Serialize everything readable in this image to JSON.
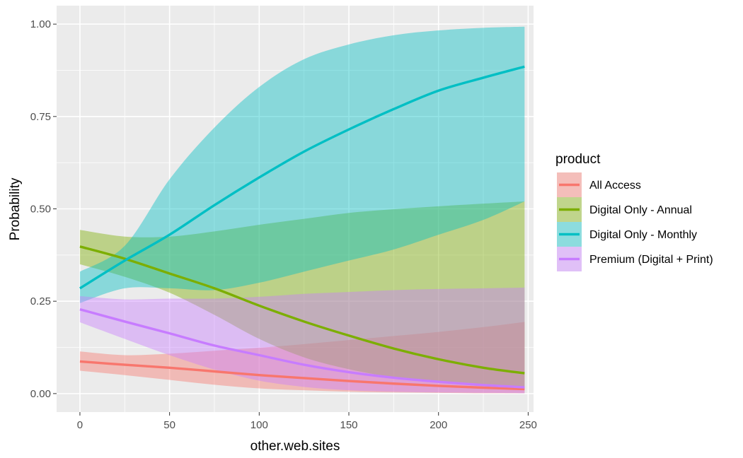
{
  "chart_data": {
    "type": "line",
    "xlabel": "other.web.sites",
    "ylabel": "Probability",
    "xlim": [
      -13,
      253
    ],
    "ylim": [
      -0.05,
      1.05
    ],
    "x_ticks": [
      0,
      50,
      100,
      150,
      200,
      250
    ],
    "x_tick_labels": [
      "0",
      "50",
      "100",
      "150",
      "200",
      "250"
    ],
    "y_ticks": [
      0,
      0.25,
      0.5,
      0.75,
      1.0
    ],
    "y_tick_labels": [
      "0.00",
      "0.25",
      "0.50",
      "0.75",
      "1.00"
    ],
    "grid": true,
    "legend": {
      "title": "product",
      "position": "right"
    },
    "x": [
      0,
      25,
      50,
      75,
      100,
      125,
      150,
      175,
      200,
      225,
      248
    ],
    "series": [
      {
        "name": "All Access",
        "color": "#F8766D",
        "values": [
          0.087,
          0.078,
          0.07,
          0.06,
          0.05,
          0.042,
          0.034,
          0.027,
          0.021,
          0.016,
          0.012
        ],
        "lower": [
          0.062,
          0.05,
          0.037,
          0.024,
          0.014,
          0.009,
          0.005,
          0.003,
          0.002,
          0.001,
          0.001
        ],
        "upper": [
          0.114,
          0.104,
          0.108,
          0.116,
          0.124,
          0.134,
          0.145,
          0.156,
          0.167,
          0.18,
          0.194
        ]
      },
      {
        "name": "Digital Only - Annual",
        "color": "#7CAE00",
        "values": [
          0.398,
          0.365,
          0.325,
          0.285,
          0.238,
          0.195,
          0.157,
          0.122,
          0.093,
          0.07,
          0.055
        ],
        "lower": [
          0.35,
          0.316,
          0.273,
          0.213,
          0.148,
          0.098,
          0.066,
          0.044,
          0.03,
          0.02,
          0.015
        ],
        "upper": [
          0.443,
          0.425,
          0.425,
          0.439,
          0.457,
          0.473,
          0.489,
          0.499,
          0.507,
          0.514,
          0.52
        ]
      },
      {
        "name": "Digital Only - Monthly",
        "color": "#00BFC4",
        "values": [
          0.285,
          0.36,
          0.43,
          0.51,
          0.585,
          0.655,
          0.715,
          0.77,
          0.82,
          0.855,
          0.885
        ],
        "lower": [
          0.245,
          0.285,
          0.285,
          0.28,
          0.3,
          0.33,
          0.36,
          0.39,
          0.43,
          0.47,
          0.52
        ],
        "upper": [
          0.33,
          0.4,
          0.58,
          0.72,
          0.83,
          0.905,
          0.945,
          0.97,
          0.983,
          0.99,
          0.993
        ]
      },
      {
        "name": "Premium (Digital + Print)",
        "color": "#C77CFF",
        "values": [
          0.228,
          0.195,
          0.163,
          0.13,
          0.104,
          0.078,
          0.058,
          0.043,
          0.032,
          0.023,
          0.017
        ],
        "lower": [
          0.193,
          0.148,
          0.104,
          0.065,
          0.035,
          0.018,
          0.009,
          0.005,
          0.003,
          0.002,
          0.001
        ],
        "upper": [
          0.264,
          0.255,
          0.257,
          0.257,
          0.262,
          0.27,
          0.275,
          0.28,
          0.283,
          0.285,
          0.287
        ]
      }
    ]
  }
}
